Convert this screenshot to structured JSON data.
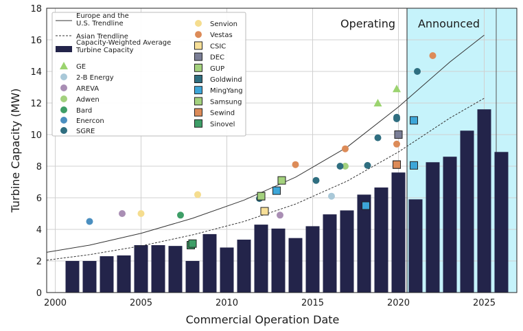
{
  "chart_data": {
    "type": "bar",
    "title": "",
    "xlabel": "Commercial Operation Date",
    "ylabel": "Turbine Capacity (MW)",
    "xlim": [
      1999.5,
      2026.9
    ],
    "ylim": [
      0,
      18
    ],
    "xticks": [
      2000,
      2005,
      2010,
      2015,
      2020,
      2025
    ],
    "yticks": [
      0,
      2,
      4,
      6,
      8,
      10,
      12,
      14,
      16,
      18
    ],
    "grid": true,
    "legend_position": "top-left",
    "regions": [
      {
        "label": "Operating",
        "start": 1999.5,
        "end": 2020.5,
        "fill": "none"
      },
      {
        "label": "Announced",
        "start": 2020.5,
        "end": 2026.9,
        "fill": "#c6f3fb"
      }
    ],
    "bars": {
      "name": "Capacity-Weighted Average Turbine Capacity",
      "color": "#23244a",
      "x": [
        2001,
        2002,
        2003,
        2004,
        2005,
        2006,
        2007,
        2008,
        2009,
        2010,
        2011,
        2012,
        2013,
        2014,
        2015,
        2016,
        2017,
        2018,
        2019,
        2020,
        2021,
        2022,
        2023,
        2024,
        2025,
        2026
      ],
      "values": [
        2.0,
        2.0,
        2.3,
        2.35,
        3.0,
        3.0,
        2.95,
        2.0,
        3.7,
        2.85,
        3.35,
        4.3,
        4.05,
        3.45,
        4.2,
        4.95,
        5.2,
        6.2,
        6.65,
        7.6,
        5.9,
        8.25,
        8.6,
        10.25,
        11.6,
        8.9
      ]
    },
    "trendlines": [
      {
        "name": "Europe and the U.S. Trendline",
        "style": "solid",
        "x": [
          1999.5,
          2002,
          2005,
          2008,
          2011,
          2014,
          2017,
          2020,
          2023,
          2025
        ],
        "values": [
          2.55,
          3.0,
          3.75,
          4.7,
          5.85,
          7.3,
          9.2,
          11.75,
          14.6,
          16.3
        ]
      },
      {
        "name": "Asian Trendline",
        "style": "dashed",
        "x": [
          1999.5,
          2002,
          2005,
          2008,
          2011,
          2014,
          2017,
          2020,
          2023,
          2025
        ],
        "values": [
          2.05,
          2.4,
          2.95,
          3.65,
          4.5,
          5.6,
          7.05,
          8.9,
          11.05,
          12.3
        ]
      }
    ],
    "series": [
      {
        "name": "GE",
        "marker": "triangle",
        "color": "#9bd36f",
        "points": [
          [
            2018.8,
            12.0
          ],
          [
            2019.9,
            12.9
          ]
        ]
      },
      {
        "name": "2-B Energy",
        "marker": "circle",
        "color": "#a9c8d8",
        "points": [
          [
            2016.1,
            6.1
          ]
        ]
      },
      {
        "name": "AREVA",
        "marker": "circle",
        "color": "#a98eb4",
        "points": [
          [
            2003.9,
            5.0
          ],
          [
            2013.1,
            4.9
          ]
        ]
      },
      {
        "name": "Adwen",
        "marker": "circle",
        "color": "#a3d17e",
        "points": [
          [
            2016.9,
            8.0
          ]
        ]
      },
      {
        "name": "Bard",
        "marker": "circle",
        "color": "#3e9e67",
        "points": [
          [
            2007.3,
            4.9
          ]
        ]
      },
      {
        "name": "Enercon",
        "marker": "circle",
        "color": "#4b8fc0",
        "points": [
          [
            2002.0,
            4.5
          ]
        ]
      },
      {
        "name": "SGRE",
        "marker": "circle",
        "color": "#2f6e80",
        "points": [
          [
            2011.9,
            5.95
          ],
          [
            2015.2,
            7.1
          ],
          [
            2016.6,
            8.0
          ],
          [
            2018.2,
            8.05
          ],
          [
            2018.8,
            9.8
          ],
          [
            2019.9,
            11.1
          ],
          [
            2019.9,
            11.0
          ],
          [
            2021.1,
            14.0
          ]
        ]
      },
      {
        "name": "Senvion",
        "marker": "circle",
        "color": "#f5dd8f",
        "points": [
          [
            2005.0,
            5.0
          ],
          [
            2008.3,
            6.2
          ]
        ]
      },
      {
        "name": "Vestas",
        "marker": "circle",
        "color": "#dc8b58",
        "points": [
          [
            2014.0,
            8.1
          ],
          [
            2016.9,
            9.1
          ],
          [
            2019.9,
            9.4
          ],
          [
            2022.0,
            15.0
          ]
        ]
      },
      {
        "name": "CSIC",
        "marker": "square",
        "color": "#f7df98",
        "points": [
          [
            2012.2,
            5.15
          ]
        ]
      },
      {
        "name": "DEC",
        "marker": "square",
        "color": "#7a7e96",
        "points": [
          [
            2020.0,
            10.0
          ]
        ]
      },
      {
        "name": "GUP",
        "marker": "square",
        "color": "#a4d27d",
        "points": [
          [
            2012.0,
            6.1
          ],
          [
            2013.2,
            7.1
          ]
        ]
      },
      {
        "name": "Goldwind",
        "marker": "square",
        "color": "#2f6e80",
        "points": [
          [
            2019.9,
            8.1
          ]
        ]
      },
      {
        "name": "MingYang",
        "marker": "square",
        "color": "#3da6d8",
        "points": [
          [
            2012.9,
            6.45
          ],
          [
            2018.1,
            5.5
          ],
          [
            2020.9,
            8.05
          ],
          [
            2020.9,
            10.9
          ]
        ]
      },
      {
        "name": "Samsung",
        "marker": "square",
        "color": "#a3d17e",
        "points": [
          [
            2012.0,
            6.1
          ]
        ]
      },
      {
        "name": "Sewind",
        "marker": "square",
        "color": "#dc8b58",
        "points": [
          [
            2019.9,
            8.1
          ]
        ]
      },
      {
        "name": "Sinovel",
        "marker": "square",
        "color": "#3e9e67",
        "points": [
          [
            2007.9,
            3.0
          ],
          [
            2008.0,
            3.1
          ]
        ]
      }
    ],
    "legend": {
      "col1": [
        {
          "label": "Europe and the U.S. Trendline",
          "lines": [
            "Europe and the",
            "U.S. Trendline"
          ],
          "kind": "line"
        },
        {
          "label": "Asian Trendline",
          "lines": [
            "Asian Trendline"
          ],
          "kind": "dashed"
        },
        {
          "label": "Capacity-Weighted Average Turbine Capacity",
          "lines": [
            "Capacity-Weighted Average",
            "Turbine Capacity"
          ],
          "kind": "bar"
        },
        {
          "label": "GE",
          "lines": [
            "GE"
          ],
          "kind": "series"
        },
        {
          "label": "2-B Energy",
          "lines": [
            "2-B Energy"
          ],
          "kind": "series"
        },
        {
          "label": "AREVA",
          "lines": [
            "AREVA"
          ],
          "kind": "series"
        },
        {
          "label": "Adwen",
          "lines": [
            "Adwen"
          ],
          "kind": "series"
        },
        {
          "label": "Bard",
          "lines": [
            "Bard"
          ],
          "kind": "series"
        },
        {
          "label": "Enercon",
          "lines": [
            "Enercon"
          ],
          "kind": "series"
        },
        {
          "label": "SGRE",
          "lines": [
            "SGRE"
          ],
          "kind": "series"
        }
      ],
      "col2": [
        "Senvion",
        "Vestas",
        "CSIC",
        "DEC",
        "GUP",
        "Goldwind",
        "MingYang",
        "Samsung",
        "Sewind",
        "Sinovel"
      ]
    }
  }
}
